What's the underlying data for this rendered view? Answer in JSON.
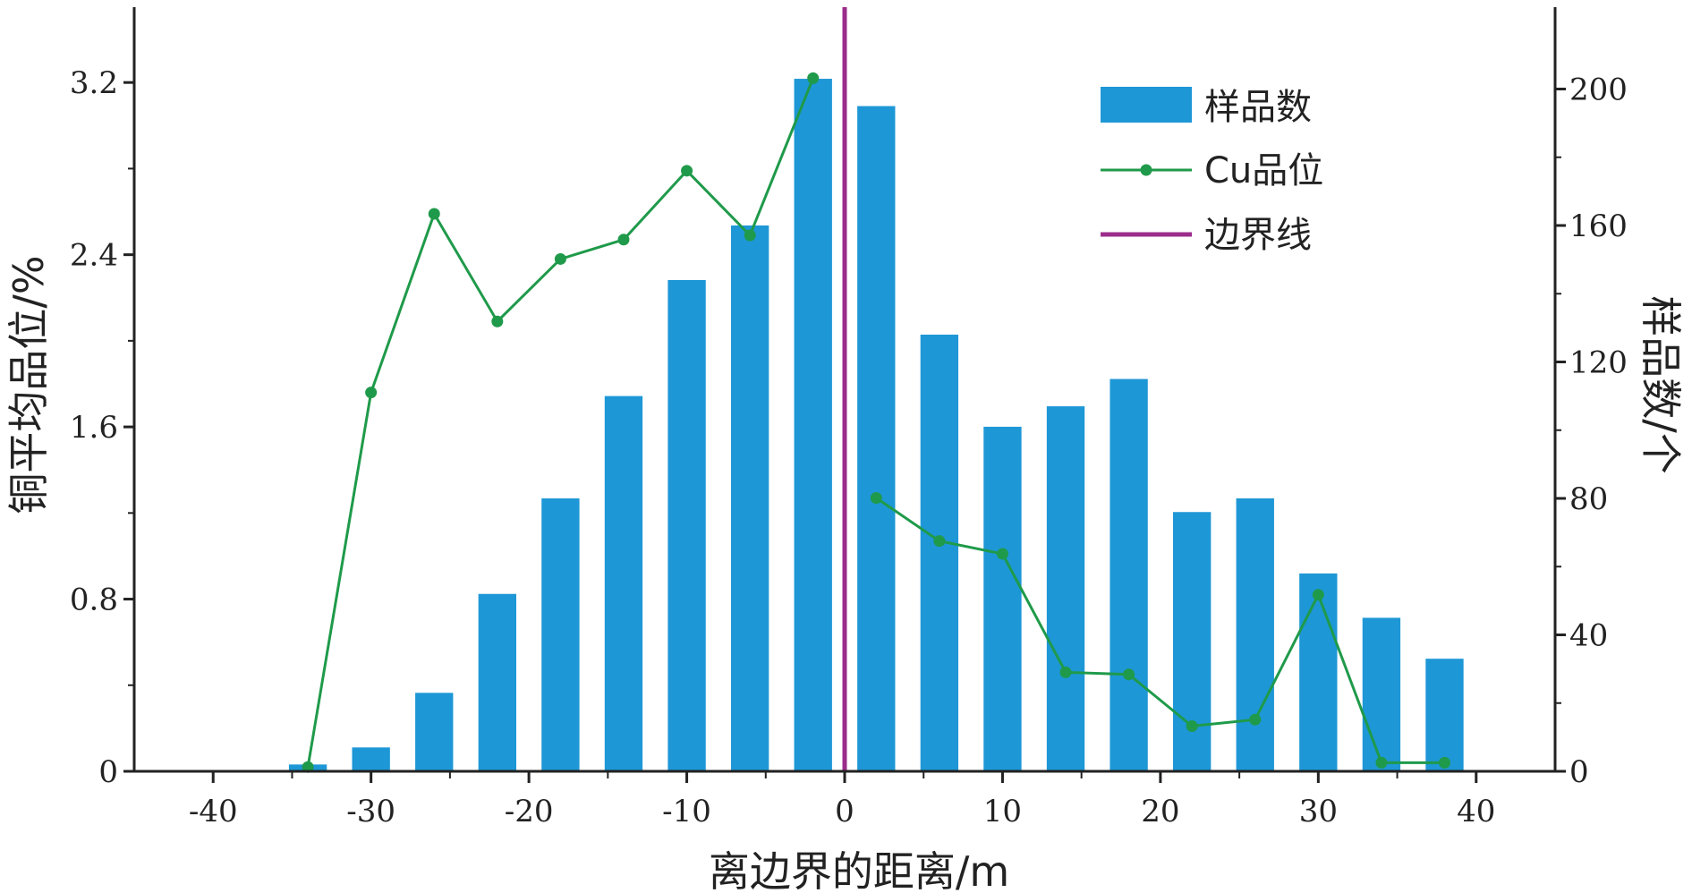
{
  "chart_data": {
    "type": "bar+line",
    "x_axis": {
      "label": "离边界的距离/m",
      "ticks": [
        -40,
        -30,
        -20,
        -10,
        0,
        10,
        20,
        30,
        40
      ],
      "range": [
        -45,
        45
      ]
    },
    "y_left": {
      "label": "铜平均品位/%",
      "ticks": [
        0,
        0.8,
        1.6,
        2.4,
        3.2
      ],
      "tick_labels": [
        "0",
        "0.8",
        "1.6",
        "2.4",
        "3.2"
      ],
      "range": [
        0,
        3.55
      ]
    },
    "y_right": {
      "label": "样品数/个",
      "ticks": [
        0,
        40,
        80,
        120,
        160,
        200
      ],
      "tick_labels": [
        "0",
        "40",
        "80",
        "120",
        "160",
        "200"
      ],
      "range": [
        0,
        224
      ]
    },
    "bars": {
      "name": "样品数",
      "color": "#1e97d6",
      "x": [
        -34,
        -30,
        -26,
        -22,
        -18,
        -14,
        -10,
        -6,
        -2,
        2,
        6,
        10,
        14,
        18,
        22,
        26,
        30,
        34,
        38
      ],
      "values": [
        2,
        7,
        23,
        52,
        80,
        110,
        144,
        160,
        203,
        195,
        128,
        101,
        107,
        115,
        76,
        80,
        58,
        45,
        33
      ]
    },
    "line": {
      "name": "Cu品位",
      "color": "#1f9a4a",
      "segments": [
        {
          "x": [
            -34,
            -30,
            -26,
            -22,
            -18,
            -14,
            -10,
            -6,
            -2
          ],
          "y": [
            0.02,
            1.76,
            2.59,
            2.09,
            2.38,
            2.47,
            2.79,
            2.49,
            3.22
          ]
        },
        {
          "x": [
            2,
            6,
            10,
            14,
            18,
            22,
            26,
            30,
            34,
            38
          ],
          "y": [
            1.27,
            1.07,
            1.01,
            0.46,
            0.45,
            0.21,
            0.24,
            0.82,
            0.04,
            0.04
          ]
        }
      ]
    },
    "boundary": {
      "name": "边界线",
      "color": "#9b2c8b",
      "x": 0
    },
    "legend": {
      "placement": "top-right",
      "entries": [
        {
          "label": "样品数",
          "kind": "bar"
        },
        {
          "label": "Cu品位",
          "kind": "line"
        },
        {
          "label": "边界线",
          "kind": "boundary"
        }
      ]
    }
  }
}
